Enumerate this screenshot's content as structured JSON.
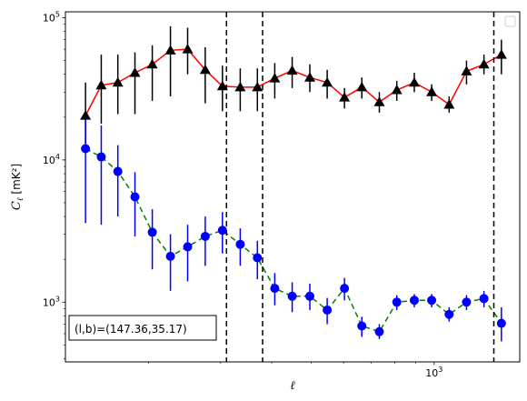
{
  "chart_data": {
    "type": "line",
    "title": "",
    "xlabel": "ℓ",
    "ylabel": "C_ℓ  [mK²]",
    "xscale": "log",
    "yscale": "log",
    "xlim": [
      125,
      1620
    ],
    "ylim": [
      380,
      110000
    ],
    "x_tick_labels": [
      {
        "value": 1000,
        "base": "10",
        "exp": "3"
      }
    ],
    "y_tick_labels": [
      {
        "value": 1000,
        "base": "10",
        "exp": "3"
      },
      {
        "value": 10000,
        "base": "10",
        "exp": "4"
      },
      {
        "value": 100000,
        "base": "10",
        "exp": "5"
      }
    ],
    "grid": false,
    "legend": {
      "position": "top-right",
      "entries": []
    },
    "annotation": "(l,b)=(147.36,35.17)",
    "vertical_lines": [
      310,
      380,
      1400
    ],
    "series": [
      {
        "color": "#ff0000",
        "marker": "triangle",
        "marker_color": "#000000",
        "errorbar_color": "#000000",
        "linestyle": "solid",
        "points": [
          {
            "x": 140,
            "y": 20500,
            "lo": 13000,
            "hi": 35000
          },
          {
            "x": 153,
            "y": 33500,
            "lo": 18000,
            "hi": 55000
          },
          {
            "x": 168,
            "y": 35000,
            "lo": 21000,
            "hi": 55000
          },
          {
            "x": 185,
            "y": 41000,
            "lo": 21000,
            "hi": 57000
          },
          {
            "x": 204,
            "y": 47000,
            "lo": 26000,
            "hi": 64000
          },
          {
            "x": 226,
            "y": 59000,
            "lo": 28000,
            "hi": 87000
          },
          {
            "x": 249,
            "y": 60000,
            "lo": 40000,
            "hi": 85000
          },
          {
            "x": 275,
            "y": 43000,
            "lo": 25000,
            "hi": 62000
          },
          {
            "x": 303,
            "y": 33000,
            "lo": 22000,
            "hi": 46000
          },
          {
            "x": 335,
            "y": 32500,
            "lo": 22000,
            "hi": 44000
          },
          {
            "x": 369,
            "y": 32500,
            "lo": 22000,
            "hi": 44000
          },
          {
            "x": 407,
            "y": 37500,
            "lo": 27000,
            "hi": 48000
          },
          {
            "x": 449,
            "y": 42500,
            "lo": 32000,
            "hi": 53000
          },
          {
            "x": 496,
            "y": 38000,
            "lo": 30000,
            "hi": 47000
          },
          {
            "x": 547,
            "y": 35000,
            "lo": 27000,
            "hi": 43000
          },
          {
            "x": 603,
            "y": 27500,
            "lo": 23000,
            "hi": 32000
          },
          {
            "x": 665,
            "y": 32500,
            "lo": 27000,
            "hi": 38000
          },
          {
            "x": 734,
            "y": 25500,
            "lo": 21500,
            "hi": 30000
          },
          {
            "x": 810,
            "y": 31000,
            "lo": 26000,
            "hi": 36000
          },
          {
            "x": 894,
            "y": 35000,
            "lo": 30000,
            "hi": 41000
          },
          {
            "x": 986,
            "y": 30000,
            "lo": 26000,
            "hi": 34000
          },
          {
            "x": 1088,
            "y": 24500,
            "lo": 21500,
            "hi": 28000
          },
          {
            "x": 1200,
            "y": 42000,
            "lo": 34000,
            "hi": 50000
          },
          {
            "x": 1324,
            "y": 47000,
            "lo": 40000,
            "hi": 55000
          },
          {
            "x": 1461,
            "y": 55000,
            "lo": 40000,
            "hi": 70000
          }
        ]
      },
      {
        "color": "#008000",
        "marker": "circle",
        "marker_color": "#0000ff",
        "errorbar_color": "#0000ff",
        "linestyle": "dashed",
        "points": [
          {
            "x": 140,
            "y": 12000,
            "lo": 3600,
            "hi": 20000
          },
          {
            "x": 153,
            "y": 10500,
            "lo": 3500,
            "hi": 17500
          },
          {
            "x": 168,
            "y": 8300,
            "lo": 4000,
            "hi": 12700
          },
          {
            "x": 185,
            "y": 5500,
            "lo": 2900,
            "hi": 8200
          },
          {
            "x": 204,
            "y": 3100,
            "lo": 1700,
            "hi": 4500
          },
          {
            "x": 226,
            "y": 2100,
            "lo": 1200,
            "hi": 3000
          },
          {
            "x": 249,
            "y": 2450,
            "lo": 1400,
            "hi": 3500
          },
          {
            "x": 275,
            "y": 2900,
            "lo": 1800,
            "hi": 4000
          },
          {
            "x": 303,
            "y": 3200,
            "lo": 2200,
            "hi": 4300
          },
          {
            "x": 335,
            "y": 2550,
            "lo": 1800,
            "hi": 3300
          },
          {
            "x": 369,
            "y": 2050,
            "lo": 1450,
            "hi": 2700
          },
          {
            "x": 407,
            "y": 1250,
            "lo": 950,
            "hi": 1600
          },
          {
            "x": 449,
            "y": 1100,
            "lo": 850,
            "hi": 1380
          },
          {
            "x": 496,
            "y": 1100,
            "lo": 880,
            "hi": 1350
          },
          {
            "x": 547,
            "y": 880,
            "lo": 700,
            "hi": 1070
          },
          {
            "x": 603,
            "y": 1250,
            "lo": 1030,
            "hi": 1480
          },
          {
            "x": 665,
            "y": 680,
            "lo": 570,
            "hi": 790
          },
          {
            "x": 734,
            "y": 620,
            "lo": 550,
            "hi": 700
          },
          {
            "x": 810,
            "y": 1000,
            "lo": 880,
            "hi": 1120
          },
          {
            "x": 894,
            "y": 1030,
            "lo": 920,
            "hi": 1140
          },
          {
            "x": 986,
            "y": 1030,
            "lo": 920,
            "hi": 1140
          },
          {
            "x": 1088,
            "y": 820,
            "lo": 730,
            "hi": 920
          },
          {
            "x": 1200,
            "y": 1000,
            "lo": 880,
            "hi": 1120
          },
          {
            "x": 1324,
            "y": 1060,
            "lo": 920,
            "hi": 1200
          },
          {
            "x": 1461,
            "y": 710,
            "lo": 530,
            "hi": 920
          }
        ]
      }
    ]
  }
}
